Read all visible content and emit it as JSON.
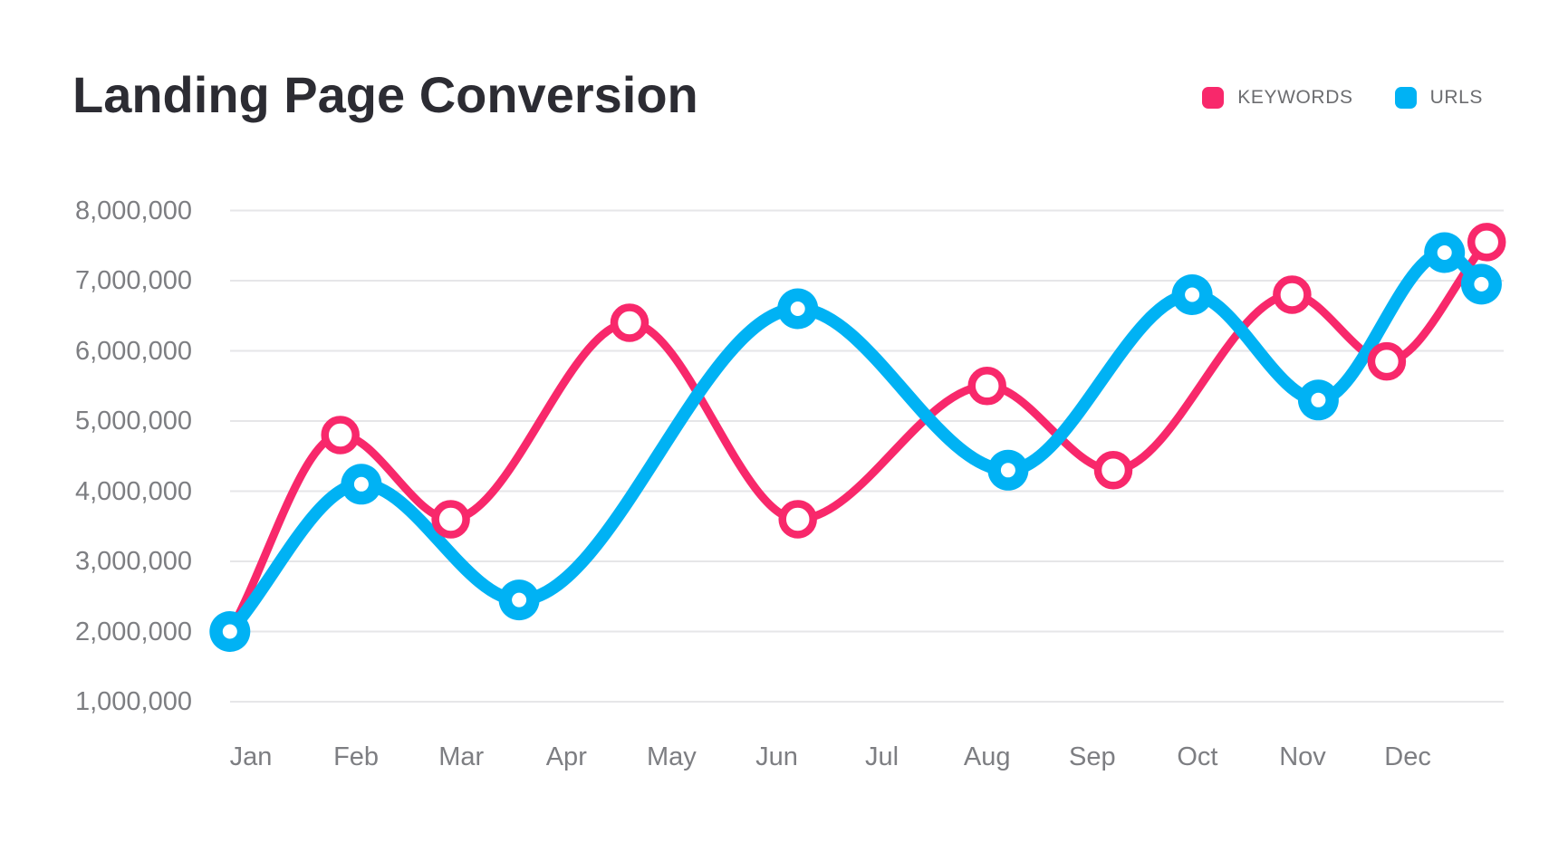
{
  "header": {
    "title": "Landing Page Conversion"
  },
  "legend": {
    "items": [
      {
        "label": "KEYWORDS",
        "color": "#f8286b"
      },
      {
        "label": "URLS",
        "color": "#00b2f4"
      }
    ]
  },
  "chart_data": {
    "type": "line",
    "title": "Landing Page Conversion",
    "curve": "smooth",
    "grid": "horizontal",
    "legend_position": "top-right",
    "background": "#ffffff",
    "categories": [
      "Jan",
      "Feb",
      "Mar",
      "Apr",
      "May",
      "Jun",
      "Jul",
      "Aug",
      "Sep",
      "Oct",
      "Nov",
      "Dec"
    ],
    "y_axis": {
      "tick_values": [
        1000000,
        2000000,
        3000000,
        4000000,
        5000000,
        6000000,
        7000000,
        8000000
      ],
      "tick_labels": [
        "1,000,000",
        "2,000,000",
        "3,000,000",
        "4,000,000",
        "5,000,000",
        "6,000,000",
        "7,000,000",
        "8,000,000"
      ],
      "range": [
        1000000,
        8000000
      ]
    },
    "series": [
      {
        "name": "KEYWORDS",
        "color": "#f8286b",
        "marker": "open-circle",
        "line_width": 9,
        "points": [
          {
            "month_index": -0.2,
            "value": 2000000,
            "marker": false
          },
          {
            "month_index": 0.85,
            "value": 4800000
          },
          {
            "month_index": 1.9,
            "value": 3600000
          },
          {
            "month_index": 3.6,
            "value": 6400000
          },
          {
            "month_index": 5.2,
            "value": 3600000
          },
          {
            "month_index": 7.0,
            "value": 5500000
          },
          {
            "month_index": 8.2,
            "value": 4300000
          },
          {
            "month_index": 9.9,
            "value": 6800000
          },
          {
            "month_index": 10.8,
            "value": 5850000
          },
          {
            "month_index": 11.75,
            "value": 7550000
          }
        ]
      },
      {
        "name": "URLS",
        "color": "#00b2f4",
        "marker": "filled-donut",
        "line_width": 14,
        "points": [
          {
            "month_index": -0.2,
            "value": 2000000
          },
          {
            "month_index": 1.05,
            "value": 4100000
          },
          {
            "month_index": 2.55,
            "value": 2450000
          },
          {
            "month_index": 5.2,
            "value": 6600000
          },
          {
            "month_index": 7.2,
            "value": 4300000
          },
          {
            "month_index": 8.95,
            "value": 6800000
          },
          {
            "month_index": 10.15,
            "value": 5300000
          },
          {
            "month_index": 11.35,
            "value": 7400000
          },
          {
            "month_index": 11.7,
            "value": 6950000
          }
        ]
      }
    ]
  }
}
